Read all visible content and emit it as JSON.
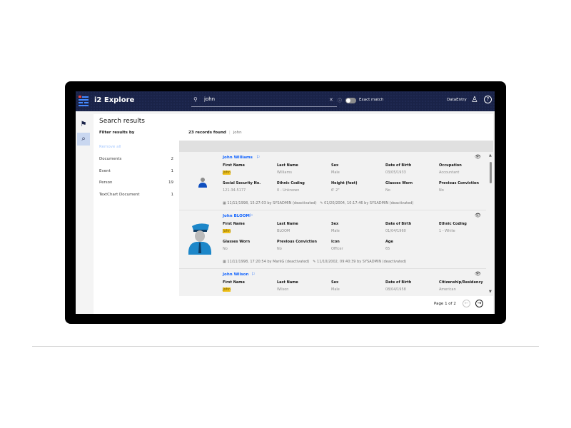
{
  "header": {
    "app_title": "i2 Explore",
    "search_value": "john",
    "exact_match_label": "Exact match",
    "exact_match_on": false,
    "user": "DataEntry"
  },
  "page": {
    "title": "Search results"
  },
  "filters": {
    "title": "Filter results by",
    "remove_all": "Remove all",
    "items": [
      {
        "label": "Documents",
        "count": "2"
      },
      {
        "label": "Event",
        "count": "1"
      },
      {
        "label": "Person",
        "count": "19"
      },
      {
        "label": "TextChart Document",
        "count": "1"
      }
    ]
  },
  "results": {
    "count_text": "23 records found",
    "query": "john",
    "cards": [
      {
        "name": "John Williams",
        "fields": [
          [
            "First Name",
            "John"
          ],
          [
            "Last Name",
            "Williams"
          ],
          [
            "Sex",
            "Male"
          ],
          [
            "Date of Birth",
            "03/05/1933"
          ],
          [
            "Occupation",
            "Accountant"
          ],
          [
            "Social Security No.",
            "121-34-5177"
          ],
          [
            "Ethnic Coding",
            "0 - Unknown"
          ],
          [
            "Height (feet)",
            "6' 2\""
          ],
          [
            "Glasses Worn",
            "No"
          ],
          [
            "Previous Conviction",
            "No"
          ]
        ],
        "created": "11/11/1998, 15:27:03 by SYSADMIN (deactivated)",
        "modified": "01/20/2004, 10:17:46 by SYSADMIN (deactivated)"
      },
      {
        "name": "John BLOOM",
        "fields": [
          [
            "First Name",
            "John"
          ],
          [
            "Last Name",
            "BLOOM"
          ],
          [
            "Sex",
            "Male"
          ],
          [
            "Date of Birth",
            "01/04/1960"
          ],
          [
            "Ethnic Coding",
            "1 - White"
          ],
          [
            "Glasses Worn",
            "No"
          ],
          [
            "Previous Conviction",
            "No"
          ],
          [
            "Icon",
            "Officer"
          ],
          [
            "Age",
            "65"
          ]
        ],
        "created": "11/11/1998, 17:20:54 by MarkG (deactivated)",
        "modified": "11/10/2002, 09:40:39 by SYSADMIN (deactivated)"
      },
      {
        "name": "John Wilson",
        "fields": [
          [
            "First Name",
            "John"
          ],
          [
            "Last Name",
            "Wilson"
          ],
          [
            "Sex",
            "Male"
          ],
          [
            "Date of Birth",
            "08/04/1958"
          ],
          [
            "Citizenship/Residency",
            "American"
          ]
        ]
      }
    ]
  },
  "pagination": {
    "label": "Page 1 of 2"
  },
  "colors": {
    "header_bg": "#1a2348",
    "link": "#0f62fe",
    "highlight": "#f1c21b"
  }
}
